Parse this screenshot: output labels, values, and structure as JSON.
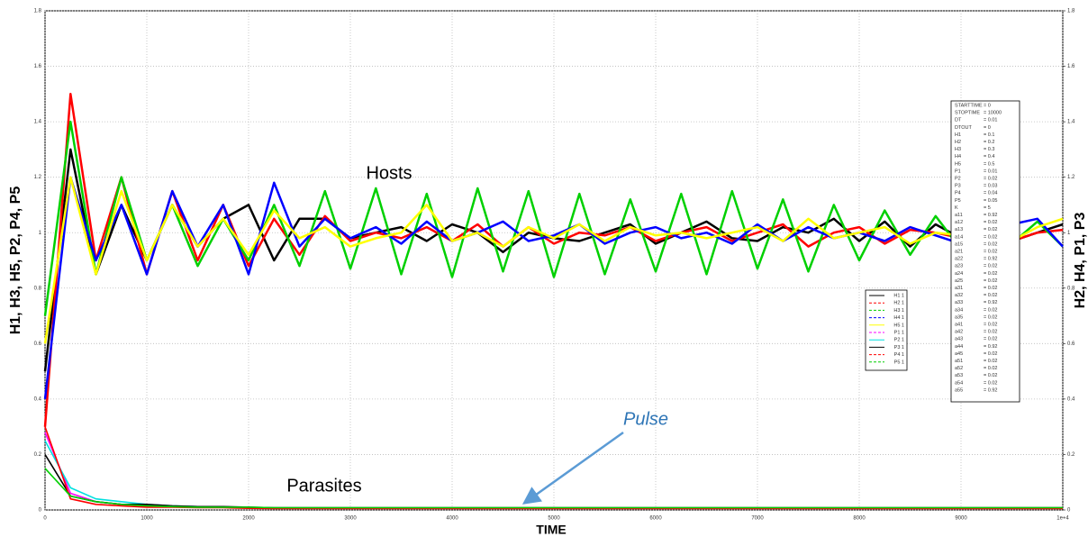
{
  "chart_data": {
    "type": "line",
    "xlabel": "TIME",
    "ylabel": "H1, H3, H5, P2, P4, P5",
    "y2label": "H2, H4, P1, P3",
    "annotations": {
      "hosts": "Hosts",
      "parasites": "Parasites",
      "pulse": "Pulse"
    },
    "xlim": [
      0,
      10000
    ],
    "xticks": [
      0,
      1000,
      2000,
      3000,
      4000,
      5000,
      6000,
      7000,
      8000,
      9000,
      {
        "value": 10000,
        "label": "1e+4"
      }
    ],
    "ylim": [
      0,
      1.8
    ],
    "yticks": [
      0,
      0.2,
      0.4,
      0.6,
      0.8,
      1,
      1.2,
      1.4,
      1.6,
      1.8
    ],
    "y2lim": [
      0,
      1.8
    ],
    "y2ticks": [
      0,
      0.2,
      0.4,
      0.6,
      0.8,
      1,
      1.2,
      1.4,
      1.6,
      1.8
    ],
    "grid": true,
    "x": [
      0,
      250,
      500,
      750,
      1000,
      1250,
      1500,
      1750,
      2000,
      2250,
      2500,
      2750,
      3000,
      3250,
      3500,
      3750,
      4000,
      4250,
      4500,
      4750,
      5000,
      5250,
      5500,
      5750,
      6000,
      6250,
      6500,
      6750,
      7000,
      7250,
      7500,
      7750,
      8000,
      8250,
      8500,
      8750,
      9000,
      9250,
      9500,
      9750,
      10000
    ],
    "series": [
      {
        "name": "H1 1",
        "color": "#000000",
        "dash": false,
        "values": [
          0.5,
          1.3,
          0.85,
          1.1,
          0.9,
          1.1,
          0.95,
          1.05,
          1.1,
          0.9,
          1.05,
          1.05,
          0.98,
          1.0,
          1.02,
          0.97,
          1.03,
          1.0,
          0.93,
          1.0,
          0.98,
          0.97,
          1.0,
          1.03,
          0.96,
          1.0,
          1.04,
          0.98,
          0.97,
          1.02,
          1.0,
          1.05,
          0.97,
          1.04,
          0.95,
          1.03,
          0.98,
          1.0,
          0.97,
          1.0,
          1.03
        ]
      },
      {
        "name": "H2 1",
        "color": "#ff0000",
        "dash": true,
        "axis": "y2",
        "values": [
          0.3,
          1.5,
          0.9,
          1.2,
          0.85,
          1.15,
          0.9,
          1.1,
          0.88,
          1.05,
          0.92,
          1.06,
          0.97,
          1.0,
          0.98,
          1.02,
          0.97,
          1.03,
          0.95,
          1.02,
          0.96,
          1.0,
          0.99,
          1.02,
          0.97,
          1.0,
          1.02,
          0.97,
          1.0,
          1.03,
          0.95,
          1.0,
          1.02,
          0.96,
          1.01,
          1.0,
          0.98,
          1.0,
          0.97,
          1.0,
          1.01
        ]
      },
      {
        "name": "H3 1",
        "color": "#00d000",
        "dash": true,
        "values": [
          0.7,
          1.4,
          0.85,
          1.2,
          0.9,
          1.1,
          0.88,
          1.05,
          0.9,
          1.1,
          0.88,
          1.15,
          0.87,
          1.16,
          0.85,
          1.14,
          0.84,
          1.16,
          0.86,
          1.15,
          0.84,
          1.14,
          0.85,
          1.12,
          0.86,
          1.14,
          0.85,
          1.15,
          0.87,
          1.12,
          0.86,
          1.1,
          0.9,
          1.08,
          0.92,
          1.06,
          0.94,
          1.05,
          0.96,
          1.04,
          0.95
        ]
      },
      {
        "name": "H4 1",
        "color": "#0000ff",
        "dash": true,
        "axis": "y2",
        "values": [
          0.4,
          1.2,
          0.9,
          1.1,
          0.85,
          1.15,
          0.95,
          1.1,
          0.85,
          1.18,
          0.95,
          1.05,
          0.98,
          1.02,
          0.96,
          1.04,
          0.97,
          1.0,
          1.04,
          0.97,
          0.99,
          1.03,
          0.96,
          1.0,
          1.02,
          0.98,
          1.0,
          0.96,
          1.03,
          0.97,
          1.02,
          0.98,
          1.0,
          0.97,
          1.02,
          0.99,
          0.96,
          1.0,
          1.03,
          1.05,
          0.95
        ]
      },
      {
        "name": "H5 1",
        "color": "#ffff00",
        "dash": false,
        "values": [
          0.6,
          1.2,
          0.85,
          1.15,
          0.9,
          1.1,
          0.95,
          1.05,
          0.92,
          1.08,
          0.98,
          1.02,
          0.95,
          0.98,
          1.0,
          1.1,
          0.97,
          1.0,
          0.95,
          1.02,
          0.98,
          1.03,
          0.97,
          1.02,
          0.99,
          1.0,
          0.98,
          1.0,
          1.02,
          0.97,
          1.05,
          0.98,
          1.0,
          1.02,
          0.96,
          1.0,
          0.99,
          1.02,
          0.97,
          1.02,
          1.05
        ]
      },
      {
        "name": "P1 1",
        "color": "#ff00ff",
        "dash": true,
        "axis": "y2",
        "values": [
          0.28,
          0.06,
          0.03,
          0.02,
          0.015,
          0.012,
          0.01,
          0.01,
          0.008,
          0.006,
          0.006,
          0.006,
          0.006,
          0.006,
          0.006,
          0.006,
          0.006,
          0.006,
          0.006,
          0.006,
          0.006,
          0.006,
          0.006,
          0.006,
          0.006,
          0.006,
          0.006,
          0.006,
          0.006,
          0.006,
          0.006,
          0.006,
          0.006,
          0.006,
          0.006,
          0.006,
          0.006,
          0.006,
          0.006,
          0.006,
          0.006
        ]
      },
      {
        "name": "P2 1",
        "color": "#00e0e0",
        "dash": false,
        "values": [
          0.25,
          0.08,
          0.04,
          0.03,
          0.02,
          0.015,
          0.012,
          0.01,
          0.01,
          0.006,
          0.006,
          0.006,
          0.006,
          0.006,
          0.006,
          0.006,
          0.006,
          0.006,
          0.006,
          0.006,
          0.006,
          0.006,
          0.006,
          0.006,
          0.006,
          0.006,
          0.006,
          0.006,
          0.006,
          0.006,
          0.006,
          0.006,
          0.006,
          0.006,
          0.006,
          0.006,
          0.006,
          0.006,
          0.006,
          0.006,
          0.006
        ]
      },
      {
        "name": "P3 1",
        "color": "#000000",
        "dash": false,
        "axis": "y2",
        "values": [
          0.2,
          0.05,
          0.03,
          0.02,
          0.02,
          0.015,
          0.012,
          0.012,
          0.01,
          0.008,
          0.008,
          0.008,
          0.008,
          0.008,
          0.008,
          0.008,
          0.008,
          0.008,
          0.008,
          0.008,
          0.008,
          0.008,
          0.008,
          0.008,
          0.008,
          0.008,
          0.008,
          0.008,
          0.008,
          0.008,
          0.008,
          0.008,
          0.008,
          0.008,
          0.008,
          0.008,
          0.008,
          0.008,
          0.008,
          0.008,
          0.008
        ]
      },
      {
        "name": "P4 1",
        "color": "#ff0000",
        "dash": true,
        "values": [
          0.3,
          0.04,
          0.02,
          0.015,
          0.01,
          0.01,
          0.008,
          0.008,
          0.006,
          0.005,
          0.005,
          0.005,
          0.005,
          0.005,
          0.005,
          0.005,
          0.005,
          0.005,
          0.005,
          0.005,
          0.005,
          0.005,
          0.005,
          0.005,
          0.005,
          0.005,
          0.005,
          0.005,
          0.005,
          0.005,
          0.005,
          0.005,
          0.005,
          0.005,
          0.005,
          0.005,
          0.005,
          0.005,
          0.005,
          0.005,
          0.005
        ]
      },
      {
        "name": "P5 1",
        "color": "#00d000",
        "dash": true,
        "values": [
          0.15,
          0.05,
          0.03,
          0.02,
          0.015,
          0.012,
          0.01,
          0.01,
          0.01,
          0.008,
          0.008,
          0.008,
          0.008,
          0.008,
          0.008,
          0.008,
          0.008,
          0.008,
          0.008,
          0.008,
          0.008,
          0.008,
          0.008,
          0.008,
          0.008,
          0.008,
          0.008,
          0.008,
          0.008,
          0.008,
          0.008,
          0.008,
          0.008,
          0.008,
          0.008,
          0.008,
          0.008,
          0.008,
          0.008,
          0.008,
          0.008
        ]
      }
    ],
    "parameters": [
      [
        "STARTTIME",
        "= 0"
      ],
      [
        "STOPTIME",
        "= 10000"
      ],
      [
        "DT",
        "= 0.01"
      ],
      [
        "DTOUT",
        "= 0"
      ],
      [
        "H1",
        "= 0.1"
      ],
      [
        "H2",
        "= 0.2"
      ],
      [
        "H3",
        "= 0.3"
      ],
      [
        "H4",
        "= 0.4"
      ],
      [
        "H5",
        "= 0.5"
      ],
      [
        "P1",
        "= 0.01"
      ],
      [
        "P2",
        "= 0.02"
      ],
      [
        "P3",
        "= 0.03"
      ],
      [
        "P4",
        "= 0.04"
      ],
      [
        "P5",
        "= 0.05"
      ],
      [
        "K",
        "= 5"
      ],
      [
        "a11",
        "= 0.92"
      ],
      [
        "a12",
        "= 0.02"
      ],
      [
        "a13",
        "= 0.02"
      ],
      [
        "a14",
        "= 0.02"
      ],
      [
        "a15",
        "= 0.02"
      ],
      [
        "a21",
        "= 0.02"
      ],
      [
        "a22",
        "= 0.92"
      ],
      [
        "a23",
        "= 0.02"
      ],
      [
        "a24",
        "= 0.02"
      ],
      [
        "a25",
        "= 0.02"
      ],
      [
        "a31",
        "= 0.02"
      ],
      [
        "a32",
        "= 0.02"
      ],
      [
        "a33",
        "= 0.92"
      ],
      [
        "a34",
        "= 0.02"
      ],
      [
        "a35",
        "= 0.02"
      ],
      [
        "a41",
        "= 0.02"
      ],
      [
        "a42",
        "= 0.02"
      ],
      [
        "a43",
        "= 0.02"
      ],
      [
        "a44",
        "= 0.92"
      ],
      [
        "a45",
        "= 0.02"
      ],
      [
        "a51",
        "= 0.02"
      ],
      [
        "a52",
        "= 0.02"
      ],
      [
        "a53",
        "= 0.02"
      ],
      [
        "a54",
        "= 0.02"
      ],
      [
        "a55",
        "= 0.92"
      ]
    ]
  }
}
